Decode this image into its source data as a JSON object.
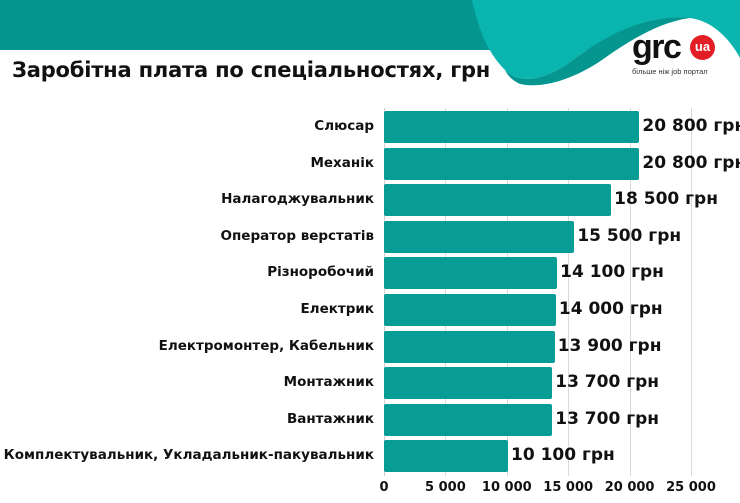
{
  "header": {
    "title": "Заробітна плата по спеціальностях, грн",
    "colors": {
      "band": "#069690",
      "wave_light": "#0ab5b0",
      "wave_dark": "#069690",
      "bar": "#079c94",
      "logo_badge": "#e31e24"
    }
  },
  "logo": {
    "word": "grc",
    "badge": "ua",
    "tagline": "більше ніж job портал"
  },
  "chart_data": {
    "type": "bar",
    "orientation": "horizontal",
    "title": "Заробітна плата по спеціальностях, грн",
    "xlabel": "",
    "ylabel": "",
    "xlim": [
      0,
      25000
    ],
    "grid": true,
    "legend": null,
    "categories": [
      "Слюсар",
      "Механік",
      "Налагоджувальник",
      "Оператор верстатів",
      "Різноробочий",
      "Електрик",
      "Електромонтер, Кабельник",
      "Монтажник",
      "Вантажник",
      "Комплектувальник, Укладальник-пакувальник"
    ],
    "values": [
      20800,
      20800,
      18500,
      15500,
      14100,
      14000,
      13900,
      13700,
      13700,
      10100
    ],
    "value_labels": [
      "20 800 грн",
      "20 800 грн",
      "18 500 грн",
      "15 500 грн",
      "14 100 грн",
      "14 000 грн",
      "13 900 грн",
      "13 700 грн",
      "13 700 грн",
      "10 100 грн"
    ],
    "x_ticks": [
      0,
      5000,
      10000,
      15000,
      20000,
      25000
    ],
    "x_tick_labels": [
      "0",
      "5 000",
      "10 000",
      "15 000",
      "20 000",
      "25 000"
    ]
  }
}
